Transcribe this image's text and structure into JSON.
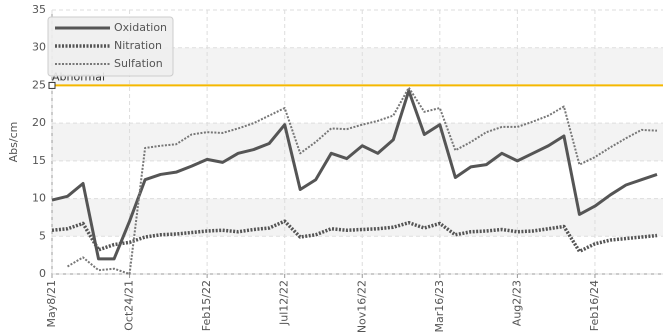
{
  "chart_data": {
    "type": "line",
    "categories": [
      "May8/21",
      null,
      null,
      null,
      null,
      "Oct24/21",
      null,
      null,
      null,
      null,
      "Feb15/22",
      null,
      null,
      null,
      null,
      "Jul12/22",
      null,
      null,
      null,
      null,
      "Nov16/22",
      null,
      null,
      null,
      null,
      "Mar16/23",
      null,
      null,
      null,
      null,
      "Aug2/23",
      null,
      null,
      null,
      null,
      "Feb16/24",
      null,
      null,
      null,
      null
    ],
    "series": [
      {
        "name": "Oxidation",
        "color": "#555555",
        "dash": "none",
        "width": 3,
        "values": [
          9.8,
          10.3,
          12,
          2,
          2,
          7,
          12.5,
          13.2,
          13.5,
          14.3,
          15.2,
          14.8,
          16,
          16.5,
          17.3,
          19.8,
          11.2,
          12.5,
          16,
          15.3,
          17,
          16,
          17.8,
          24.3,
          18.5,
          19.8,
          12.8,
          14.2,
          14.5,
          16,
          15,
          16,
          17,
          18.3,
          7.9,
          9,
          10.5,
          11.8,
          12.5,
          13.2
        ]
      },
      {
        "name": "Nitration",
        "color": "#555555",
        "dash": "2 1.5",
        "width": 3.5,
        "values": [
          5.8,
          6,
          6.7,
          3.2,
          3.9,
          4.2,
          4.9,
          5.2,
          5.3,
          5.5,
          5.7,
          5.8,
          5.6,
          5.9,
          6.1,
          7,
          4.9,
          5.2,
          6,
          5.8,
          5.9,
          6,
          6.2,
          6.8,
          6.1,
          6.7,
          5.2,
          5.6,
          5.7,
          5.9,
          5.6,
          5.7,
          6,
          6.3,
          3,
          4,
          4.5,
          4.7,
          4.9,
          5.1
        ]
      },
      {
        "name": "Sulfation",
        "color": "#777777",
        "dash": "2 1.5",
        "width": 2,
        "values": [
          null,
          1,
          2.2,
          0.5,
          0.7,
          0,
          16.7,
          17,
          17.2,
          18.5,
          18.8,
          18.7,
          19.3,
          20,
          21,
          22,
          16,
          17.5,
          19.3,
          19.2,
          19.8,
          20.3,
          21,
          24.7,
          21.5,
          22,
          16.4,
          17.5,
          18.8,
          19.5,
          19.5,
          20.2,
          21,
          22.2,
          14.5,
          15.5,
          16.8,
          18,
          19.1,
          19
        ]
      }
    ],
    "threshold": {
      "value": 25,
      "label": "Abnormal",
      "color": "#f5b800"
    },
    "ylabel": "Abs/cm",
    "ylim": [
      0,
      35
    ],
    "yticks": [
      0,
      5,
      10,
      15,
      20,
      25,
      30,
      35
    ],
    "grid": true,
    "legend": "top-left"
  }
}
